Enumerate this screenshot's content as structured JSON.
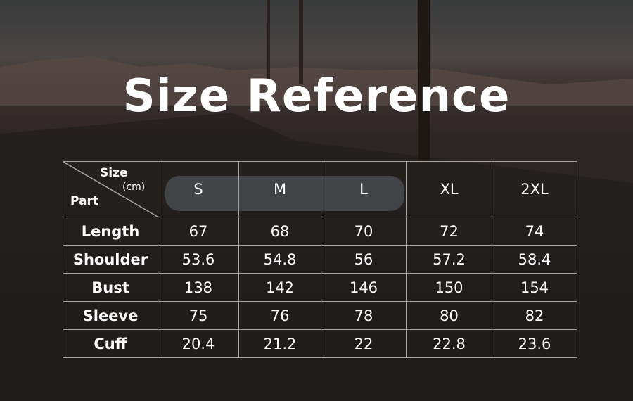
{
  "title": "Size Reference",
  "table": {
    "corner": {
      "size": "Size",
      "unit": "(cm)",
      "part": "Part"
    },
    "sizes": [
      "S",
      "M",
      "L",
      "XL",
      "2XL"
    ],
    "rows": [
      {
        "part": "Length",
        "values": [
          "67",
          "68",
          "70",
          "72",
          "74"
        ]
      },
      {
        "part": "Shoulder",
        "values": [
          "53.6",
          "54.8",
          "56",
          "57.2",
          "58.4"
        ]
      },
      {
        "part": "Bust",
        "values": [
          "138",
          "142",
          "146",
          "150",
          "154"
        ]
      },
      {
        "part": "Sleeve",
        "values": [
          "75",
          "76",
          "78",
          "80",
          "82"
        ]
      },
      {
        "part": "Cuff",
        "values": [
          "20.4",
          "21.2",
          "22",
          "22.8",
          "23.6"
        ]
      }
    ]
  }
}
